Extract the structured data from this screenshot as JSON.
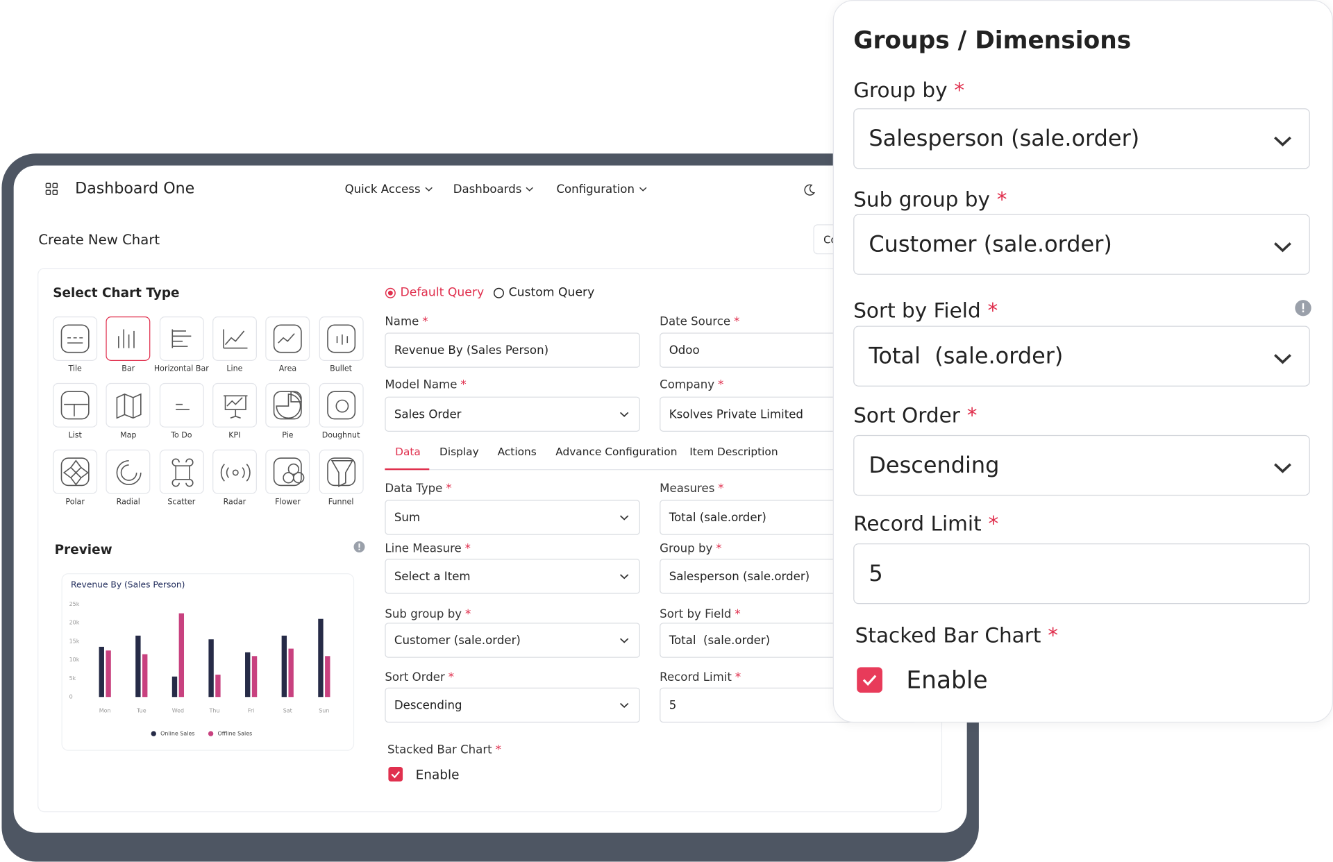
{
  "header": {
    "title": "Dashboard One",
    "nav": [
      "Quick Access",
      "Dashboards",
      "Configuration"
    ]
  },
  "page": {
    "title": "Create New Chart",
    "action_button": "Co"
  },
  "required_mark": "*",
  "chart_types": {
    "title": "Select Chart Type",
    "items": [
      "Tile",
      "Bar",
      "Horizontal Bar",
      "Line",
      "Area",
      "Bullet",
      "List",
      "Map",
      "To Do",
      "KPI",
      "Pie",
      "Doughnut",
      "Polar",
      "Radial",
      "Scatter",
      "Radar",
      "Flower",
      "Funnel"
    ]
  },
  "preview": {
    "title": "Preview",
    "chart_data": {
      "type": "bar",
      "title": "Revenue By (Sales Person)",
      "categories": [
        "Mon",
        "Tue",
        "Wed",
        "Thu",
        "Fri",
        "Sat",
        "Sun"
      ],
      "series": [
        {
          "name": "Online Sales",
          "color": "#262b47",
          "values": [
            13500,
            16500,
            5500,
            15500,
            12000,
            16500,
            21000
          ]
        },
        {
          "name": "Offline Sales",
          "color": "#c8417f",
          "values": [
            12500,
            11500,
            22500,
            6000,
            11000,
            13000,
            11000
          ]
        }
      ],
      "ylim": [
        0,
        25000
      ],
      "yticks": [
        0,
        {
          "value": 5000,
          "label": "5k"
        },
        {
          "value": 10000,
          "label": "10k"
        },
        {
          "value": 15000,
          "label": "15k"
        },
        {
          "value": 20000,
          "label": "20k"
        },
        {
          "value": 25000,
          "label": "25k"
        }
      ],
      "legend": "bottom"
    }
  },
  "query": {
    "options": [
      "Default Query",
      "Custom Query"
    ]
  },
  "form": {
    "fields": [
      {
        "label": "Name",
        "value": "Revenue By (Sales Person)",
        "kind": "input"
      },
      {
        "label": "Date Source",
        "value": "Odoo",
        "kind": "input"
      },
      {
        "label": "Model Name",
        "value": "Sales Order",
        "kind": "select"
      },
      {
        "label": "Company",
        "value": "Ksolves Private Limited",
        "kind": "input"
      },
      {
        "label": "Data Type",
        "value": "Sum",
        "kind": "select"
      },
      {
        "label": "Measures",
        "value": "Total (sale.order)",
        "kind": "select"
      },
      {
        "label": "Line Measure",
        "value": "Select a Item",
        "kind": "select"
      },
      {
        "label": "Group by",
        "value": "Salesperson (sale.order)",
        "kind": "select"
      },
      {
        "label": "Sub group by",
        "value": "Customer (sale.order)",
        "kind": "select"
      },
      {
        "label": "Sort by Field",
        "value": "Total  (sale.order)",
        "kind": "select"
      },
      {
        "label": "Sort Order",
        "value": "Descending",
        "kind": "select"
      },
      {
        "label": "Record Limit",
        "value": "5",
        "kind": "input"
      }
    ],
    "tabs": [
      "Data",
      "Display",
      "Actions",
      "Advance Configuration",
      "Item Description"
    ],
    "checkbox": {
      "label": "Stacked Bar Chart",
      "option": "Enable"
    }
  },
  "panel": {
    "title": "Groups / Dimensions",
    "fields": [
      {
        "label": "Group by",
        "value": "Salesperson (sale.order)",
        "kind": "select"
      },
      {
        "label": "Sub group by",
        "value": "Customer (sale.order)",
        "kind": "select"
      },
      {
        "label": "Sort by Field",
        "value": "Total  (sale.order)",
        "kind": "select"
      },
      {
        "label": "Sort Order",
        "value": "Descending",
        "kind": "select"
      },
      {
        "label": "Record Limit",
        "value": "5",
        "kind": "input"
      }
    ],
    "checkbox": {
      "label": "Stacked Bar Chart",
      "option": "Enable"
    }
  }
}
